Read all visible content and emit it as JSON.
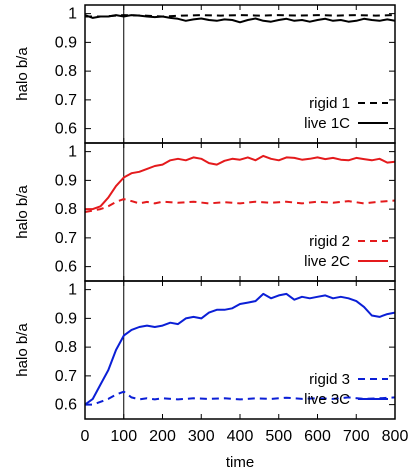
{
  "chart_data": {
    "type": "line",
    "xlabel": "time",
    "xlim": [
      0,
      800
    ],
    "xticks": [
      "0",
      "100",
      "200",
      "300",
      "400",
      "500",
      "600",
      "700",
      "800"
    ],
    "annotations": [
      {
        "type": "vertical-line",
        "x": 100
      }
    ],
    "panels": [
      {
        "ylabel": "halo b/a",
        "ylim": [
          0.55,
          1.03
        ],
        "yticks": [
          "1",
          "0.9",
          "0.8",
          "0.7",
          "0.6"
        ],
        "legend_position": "bottom-right",
        "series": [
          {
            "name": "rigid 1",
            "style": "dashed",
            "color": "#000000",
            "x": [
              0,
              50,
              100,
              150,
              200,
              250,
              300,
              350,
              400,
              450,
              500,
              550,
              600,
              650,
              700,
              750,
              800
            ],
            "y": [
              0.99,
              0.99,
              0.995,
              0.993,
              0.99,
              0.993,
              0.995,
              0.993,
              0.995,
              0.993,
              0.995,
              0.993,
              0.995,
              0.993,
              0.995,
              0.993,
              0.995
            ]
          },
          {
            "name": "live 1C",
            "style": "solid",
            "color": "#000000",
            "x": [
              0,
              20,
              40,
              60,
              80,
              100,
              120,
              140,
              160,
              180,
              200,
              220,
              240,
              260,
              280,
              300,
              320,
              340,
              360,
              380,
              400,
              420,
              440,
              460,
              480,
              500,
              520,
              540,
              560,
              580,
              600,
              620,
              640,
              660,
              680,
              700,
              720,
              740,
              760,
              780,
              800
            ],
            "y": [
              0.995,
              0.985,
              0.99,
              0.99,
              0.995,
              0.99,
              0.995,
              0.993,
              0.99,
              0.988,
              0.99,
              0.985,
              0.982,
              0.975,
              0.98,
              0.983,
              0.978,
              0.975,
              0.98,
              0.978,
              0.97,
              0.978,
              0.983,
              0.975,
              0.972,
              0.978,
              0.982,
              0.975,
              0.978,
              0.972,
              0.978,
              0.982,
              0.975,
              0.978,
              0.972,
              0.975,
              0.982,
              0.978,
              0.975,
              0.98,
              0.975
            ]
          }
        ]
      },
      {
        "ylabel": "halo b/a",
        "ylim": [
          0.55,
          1.03
        ],
        "yticks": [
          "1",
          "0.9",
          "0.8",
          "0.7",
          "0.6"
        ],
        "legend_position": "bottom-right",
        "series": [
          {
            "name": "rigid 2",
            "style": "dashed",
            "color": "#e41a1c",
            "x": [
              0,
              20,
              40,
              60,
              80,
              100,
              120,
              140,
              160,
              180,
              200,
              240,
              280,
              320,
              360,
              400,
              440,
              480,
              520,
              560,
              600,
              640,
              680,
              720,
              760,
              800
            ],
            "y": [
              0.79,
              0.795,
              0.8,
              0.81,
              0.825,
              0.835,
              0.828,
              0.82,
              0.825,
              0.82,
              0.826,
              0.822,
              0.826,
              0.82,
              0.824,
              0.82,
              0.826,
              0.822,
              0.826,
              0.82,
              0.826,
              0.822,
              0.828,
              0.82,
              0.826,
              0.83
            ]
          },
          {
            "name": "live 2C",
            "style": "solid",
            "color": "#e41a1c",
            "x": [
              0,
              20,
              40,
              60,
              80,
              100,
              120,
              140,
              160,
              180,
              200,
              220,
              240,
              260,
              280,
              300,
              320,
              340,
              360,
              380,
              400,
              420,
              440,
              460,
              480,
              500,
              520,
              540,
              560,
              580,
              600,
              620,
              640,
              660,
              680,
              700,
              720,
              740,
              760,
              780,
              800
            ],
            "y": [
              0.8,
              0.8,
              0.81,
              0.84,
              0.88,
              0.91,
              0.925,
              0.93,
              0.94,
              0.95,
              0.955,
              0.97,
              0.975,
              0.97,
              0.98,
              0.975,
              0.96,
              0.955,
              0.968,
              0.975,
              0.972,
              0.98,
              0.97,
              0.985,
              0.975,
              0.97,
              0.98,
              0.978,
              0.972,
              0.975,
              0.98,
              0.974,
              0.978,
              0.972,
              0.97,
              0.978,
              0.974,
              0.97,
              0.975,
              0.962,
              0.965
            ]
          }
        ]
      },
      {
        "ylabel": "halo b/a",
        "ylim": [
          0.55,
          1.03
        ],
        "yticks": [
          "1",
          "0.9",
          "0.8",
          "0.7",
          "0.6"
        ],
        "legend_position": "bottom-right",
        "series": [
          {
            "name": "rigid 3",
            "style": "dashed",
            "color": "#0b1fd6",
            "x": [
              0,
              20,
              40,
              60,
              80,
              100,
              120,
              140,
              160,
              180,
              200,
              240,
              280,
              320,
              360,
              400,
              440,
              480,
              520,
              560,
              600,
              640,
              680,
              720,
              760,
              800
            ],
            "y": [
              0.6,
              0.6,
              0.61,
              0.62,
              0.635,
              0.645,
              0.625,
              0.618,
              0.622,
              0.618,
              0.622,
              0.618,
              0.622,
              0.62,
              0.622,
              0.618,
              0.622,
              0.62,
              0.624,
              0.62,
              0.622,
              0.62,
              0.625,
              0.62,
              0.622,
              0.625
            ]
          },
          {
            "name": "live 3C",
            "style": "solid",
            "color": "#0b1fd6",
            "x": [
              0,
              20,
              40,
              60,
              80,
              100,
              120,
              140,
              160,
              180,
              200,
              220,
              240,
              260,
              280,
              300,
              320,
              340,
              360,
              380,
              400,
              420,
              440,
              460,
              480,
              500,
              520,
              540,
              560,
              580,
              600,
              620,
              640,
              660,
              680,
              700,
              720,
              740,
              760,
              780,
              800
            ],
            "y": [
              0.6,
              0.62,
              0.67,
              0.72,
              0.79,
              0.84,
              0.86,
              0.87,
              0.875,
              0.87,
              0.875,
              0.885,
              0.88,
              0.9,
              0.905,
              0.9,
              0.92,
              0.93,
              0.93,
              0.935,
              0.95,
              0.955,
              0.96,
              0.985,
              0.97,
              0.98,
              0.985,
              0.965,
              0.975,
              0.97,
              0.975,
              0.98,
              0.97,
              0.975,
              0.97,
              0.96,
              0.94,
              0.91,
              0.905,
              0.915,
              0.92
            ]
          }
        ]
      }
    ]
  }
}
